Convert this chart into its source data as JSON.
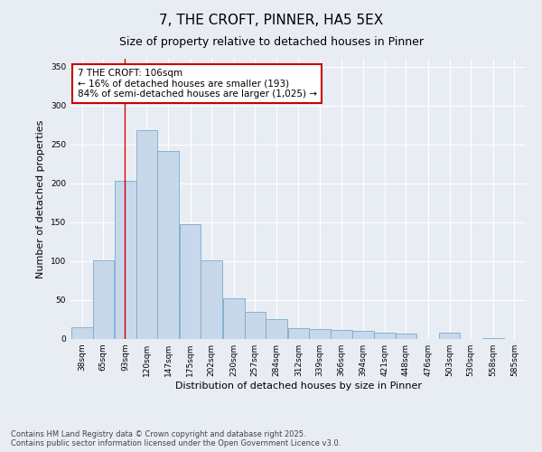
{
  "title": "7, THE CROFT, PINNER, HA5 5EX",
  "subtitle": "Size of property relative to detached houses in Pinner",
  "xlabel": "Distribution of detached houses by size in Pinner",
  "ylabel": "Number of detached properties",
  "bar_color": "#c8d8eb",
  "bar_edge_color": "#7aaac8",
  "background_color": "#e8edf4",
  "grid_color": "#ffffff",
  "bin_starts": [
    38,
    65,
    93,
    120,
    147,
    175,
    202,
    230,
    257,
    284,
    312,
    339,
    366,
    394,
    421,
    448,
    476,
    503,
    530,
    558,
    585
  ],
  "bin_width": 27,
  "bar_heights": [
    15,
    101,
    203,
    268,
    241,
    147,
    101,
    52,
    35,
    25,
    14,
    13,
    12,
    10,
    8,
    7,
    0,
    8,
    0,
    1
  ],
  "property_size": 106,
  "annotation_line1": "7 THE CROFT: 106sqm",
  "annotation_line2": "← 16% of detached houses are smaller (193)",
  "annotation_line3": "84% of semi-detached houses are larger (1,025) →",
  "annotation_box_color": "#ffffff",
  "annotation_box_edge_color": "#cc0000",
  "vline_color": "#cc0000",
  "ylim": [
    0,
    360
  ],
  "yticks": [
    0,
    50,
    100,
    150,
    200,
    250,
    300,
    350
  ],
  "footer_line1": "Contains HM Land Registry data © Crown copyright and database right 2025.",
  "footer_line2": "Contains public sector information licensed under the Open Government Licence v3.0.",
  "title_fontsize": 11,
  "subtitle_fontsize": 9,
  "tick_fontsize": 6.5,
  "label_fontsize": 8,
  "annotation_fontsize": 7.5,
  "footer_fontsize": 6
}
